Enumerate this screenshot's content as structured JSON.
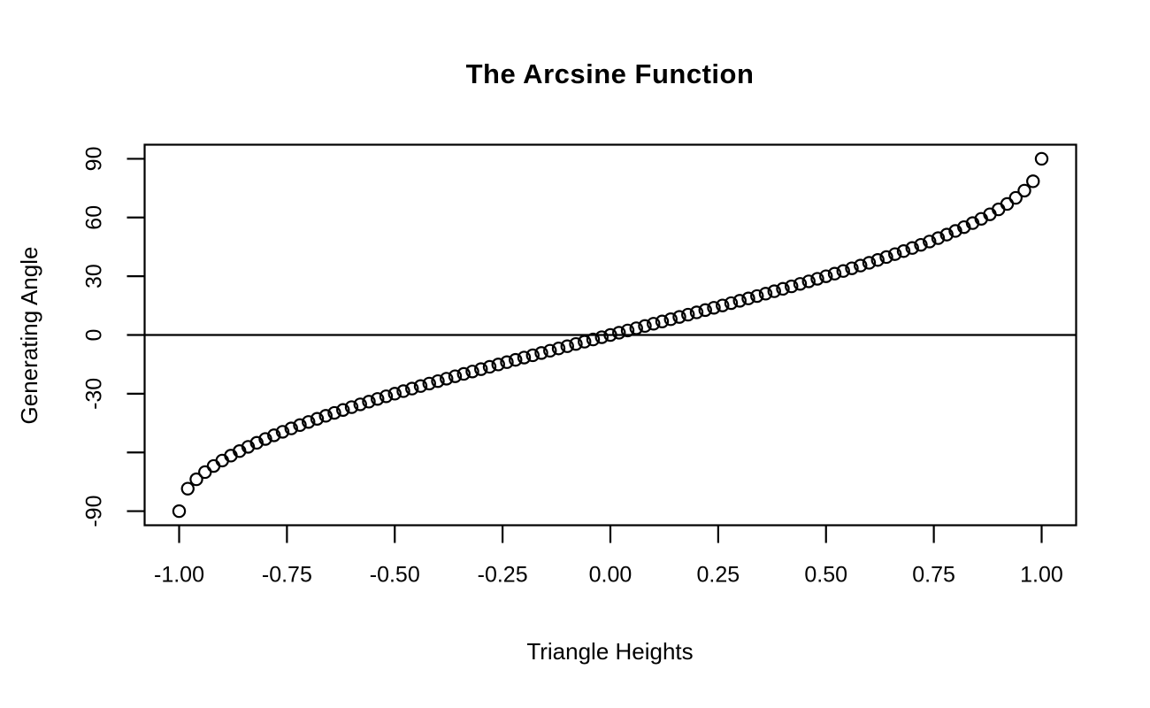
{
  "figure": {
    "background_color": "#ffffff",
    "foreground_color": "#000000"
  },
  "chart_data": {
    "type": "scatter",
    "title": "The Arcsine Function",
    "xlabel": "Triangle Heights",
    "ylabel": "Generating Angle",
    "marker": "open-circle",
    "marker_color": "#000000",
    "marker_fill": "none",
    "grid": false,
    "legend": null,
    "xlim": [
      -1.08,
      1.08
    ],
    "ylim": [
      -97.2,
      97.2
    ],
    "x_ticks": [
      -1.0,
      -0.75,
      -0.5,
      -0.25,
      0.0,
      0.25,
      0.5,
      0.75,
      1.0
    ],
    "x_tick_labels": [
      "-1.00",
      "-0.75",
      "-0.50",
      "-0.25",
      "0.00",
      "0.25",
      "0.50",
      "0.75",
      "1.00"
    ],
    "y_ticks": [
      90,
      60,
      30,
      0,
      -30,
      -60,
      -90
    ],
    "y_tick_labels": [
      "90",
      "60",
      "30",
      "0",
      "-30",
      "",
      "-90"
    ],
    "reference_line_y": 0,
    "x": [
      -1.0,
      -0.98,
      -0.96,
      -0.94,
      -0.92,
      -0.9,
      -0.88,
      -0.86,
      -0.84,
      -0.82,
      -0.8,
      -0.78,
      -0.76,
      -0.74,
      -0.72,
      -0.7,
      -0.68,
      -0.66,
      -0.64,
      -0.62,
      -0.6,
      -0.58,
      -0.56,
      -0.54,
      -0.52,
      -0.5,
      -0.48,
      -0.46,
      -0.44,
      -0.42,
      -0.4,
      -0.38,
      -0.36,
      -0.34,
      -0.32,
      -0.3,
      -0.28,
      -0.26,
      -0.24,
      -0.22,
      -0.2,
      -0.18,
      -0.16,
      -0.14,
      -0.12,
      -0.1,
      -0.08,
      -0.06,
      -0.04,
      -0.02,
      0.0,
      0.02,
      0.04,
      0.06,
      0.08,
      0.1,
      0.12,
      0.14,
      0.16,
      0.18,
      0.2,
      0.22,
      0.24,
      0.26,
      0.28,
      0.3,
      0.32,
      0.34,
      0.36,
      0.38,
      0.4,
      0.42,
      0.44,
      0.46,
      0.48,
      0.5,
      0.52,
      0.54,
      0.56,
      0.58,
      0.6,
      0.62,
      0.64,
      0.66,
      0.68,
      0.7,
      0.72,
      0.74,
      0.76,
      0.78,
      0.8,
      0.82,
      0.84,
      0.86,
      0.88,
      0.9,
      0.92,
      0.94,
      0.96,
      0.98,
      1.0
    ],
    "y": [
      -90.0,
      -78.52,
      -73.74,
      -70.05,
      -66.93,
      -64.16,
      -61.64,
      -59.32,
      -57.14,
      -55.08,
      -53.13,
      -51.26,
      -49.46,
      -47.73,
      -46.05,
      -44.43,
      -42.84,
      -41.3,
      -39.79,
      -38.32,
      -36.87,
      -35.45,
      -34.06,
      -32.68,
      -31.33,
      -30.0,
      -28.69,
      -27.39,
      -26.1,
      -24.83,
      -23.58,
      -22.33,
      -21.1,
      -19.88,
      -18.66,
      -17.46,
      -16.26,
      -15.07,
      -13.89,
      -12.71,
      -11.54,
      -10.37,
      -9.21,
      -8.05,
      -6.89,
      -5.74,
      -4.59,
      -3.44,
      -2.29,
      -1.15,
      0.0,
      1.15,
      2.29,
      3.44,
      4.59,
      5.74,
      6.89,
      8.05,
      9.21,
      10.37,
      11.54,
      12.71,
      13.89,
      15.07,
      16.26,
      17.46,
      18.66,
      19.88,
      21.1,
      22.33,
      23.58,
      24.83,
      26.1,
      27.39,
      28.69,
      30.0,
      31.33,
      32.68,
      34.06,
      35.45,
      36.87,
      38.32,
      39.79,
      41.3,
      42.84,
      44.43,
      46.05,
      47.73,
      49.46,
      51.26,
      53.13,
      55.08,
      57.14,
      59.32,
      61.64,
      64.16,
      66.93,
      70.05,
      73.74,
      78.52,
      90.0
    ]
  }
}
